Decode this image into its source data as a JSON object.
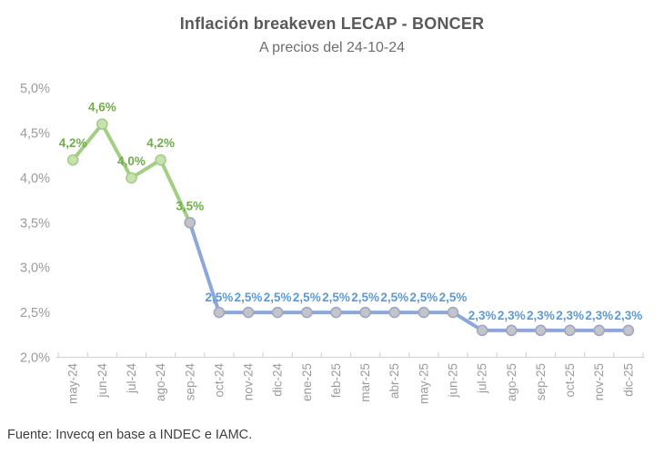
{
  "header": {
    "title": "Inflación breakeven LECAP - BONCER",
    "subtitle": "A precios del 24-10-24"
  },
  "footer": {
    "source": "Fuente: Invecq en base a INDEC e IAMC."
  },
  "chart_data": {
    "type": "line",
    "title": "Inflación breakeven LECAP - BONCER",
    "subtitle": "A precios del 24-10-24",
    "categories": [
      "may-24",
      "jun-24",
      "jul-24",
      "ago-24",
      "sep-24",
      "oct-24",
      "nov-24",
      "dic-24",
      "ene-25",
      "feb-25",
      "mar-25",
      "abr-25",
      "may-25",
      "jun-25",
      "jul-25",
      "ago-25",
      "sep-25",
      "oct-25",
      "nov-25",
      "dic-25"
    ],
    "values": [
      4.2,
      4.6,
      4.0,
      4.2,
      3.5,
      2.5,
      2.5,
      2.5,
      2.5,
      2.5,
      2.5,
      2.5,
      2.5,
      2.5,
      2.3,
      2.3,
      2.3,
      2.3,
      2.3,
      2.3
    ],
    "point_labels": [
      "4,2%",
      "4,6%",
      "4,0%",
      "4,2%",
      "3,5%",
      "2,5%",
      "2,5%",
      "2,5%",
      "2,5%",
      "2,5%",
      "2,5%",
      "2,5%",
      "2,5%",
      "2,5%",
      "2,3%",
      "2,3%",
      "2,3%",
      "2,3%",
      "2,3%",
      "2,3%"
    ],
    "segments": [
      {
        "id": "green-segment",
        "from": 0,
        "to": 4,
        "line_color": "#a3ce85",
        "marker_fill": "#c6e2b1",
        "marker_stroke": "#a3ce85",
        "label_color": "#70ad47",
        "label_dy": -14
      },
      {
        "id": "blue-segment",
        "from": 4,
        "to": 19,
        "line_color": "#8ca7dc",
        "marker_fill": "#c4c4ca",
        "marker_stroke": "#9fa9c2",
        "label_color": "#5b9bd5",
        "label_dy": -12
      }
    ],
    "y_axis": {
      "tick_labels": [
        "5,0%",
        "4,5%",
        "4,0%",
        "3,5%",
        "3,0%",
        "2,5%",
        "2,0%"
      ],
      "min": 2.0,
      "max": 5.0,
      "step": 0.5
    },
    "ylim": [
      2.0,
      5.0
    ],
    "grid": false,
    "legend": false,
    "axis_color": "#d6d6d6",
    "axis_text_color": "#9b9b9b"
  }
}
